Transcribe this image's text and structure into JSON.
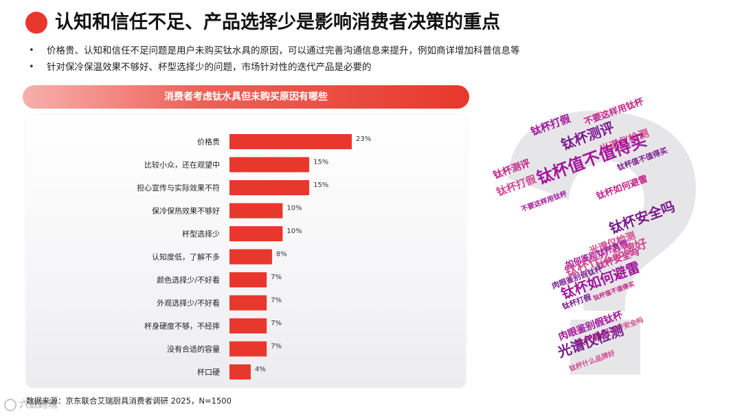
{
  "header": {
    "title": "认知和信任不足、产品选择少是影响消费者决策的重点"
  },
  "bullets": [
    "价格贵、认知和信任不足问题是用户未购买钛水具的原因，可以通过完善沟通信息来提升，例如商详增加科普信息等",
    "针对保冷保温效果不够好、杯型选择少的问题，市场针对性的迭代产品是必要的"
  ],
  "banner": {
    "text": "消费者考虑钛水具但未购买原因有哪些"
  },
  "chart_data": {
    "type": "bar",
    "orientation": "horizontal",
    "categories": [
      "价格贵",
      "比较小众，还在观望中",
      "担心宣传与实际效果不符",
      "保冷保热效果不够好",
      "杯型选择少",
      "认知度低，了解不多",
      "颜色选择少/不好看",
      "外观选择少/不好看",
      "杯身硬度不够，不经摔",
      "没有合适的容量",
      "杯口硬"
    ],
    "values": [
      23,
      15,
      15,
      10,
      10,
      8,
      7,
      7,
      7,
      7,
      4
    ],
    "value_labels": [
      "23%",
      "15%",
      "15%",
      "10%",
      "10%",
      "8%",
      "7%",
      "7%",
      "7%",
      "7%",
      "4%"
    ],
    "unit": "%",
    "xlim": [
      0,
      23
    ],
    "grid": false,
    "bar_color": "#e8382d"
  },
  "footer": {
    "source": "数据来源：京东联合艾瑞厨具消费者调研 2025，N=1500",
    "watermark": "六数跨境"
  },
  "wordcloud": {
    "words": [
      "钛杯打假",
      "不要这样用钛杯",
      "钛杯测评",
      "光谱仪检测",
      "钛杯值不值得买",
      "钛杯测评",
      "钛杯值不值得买",
      "钛杯打假",
      "不要这样用钛杯",
      "钛杯如何避雷",
      "钛杯安全吗",
      "光谱仪检测",
      "如何鉴别钛杯真假",
      "钛杯安全吗",
      "肉眼鉴别假钛杯",
      "钛杯什么品牌好",
      "钛杯如何避雷",
      "钛杯值不值得买",
      "钛杯打假",
      "钛杯安全吗",
      "肉眼鉴别假钛杯",
      "钛杯真假",
      "光谱仪检测",
      "钛杯什么品牌好"
    ],
    "colors": [
      "#a3159a",
      "#c32588",
      "#7a1a8c",
      "#d24a90"
    ]
  }
}
